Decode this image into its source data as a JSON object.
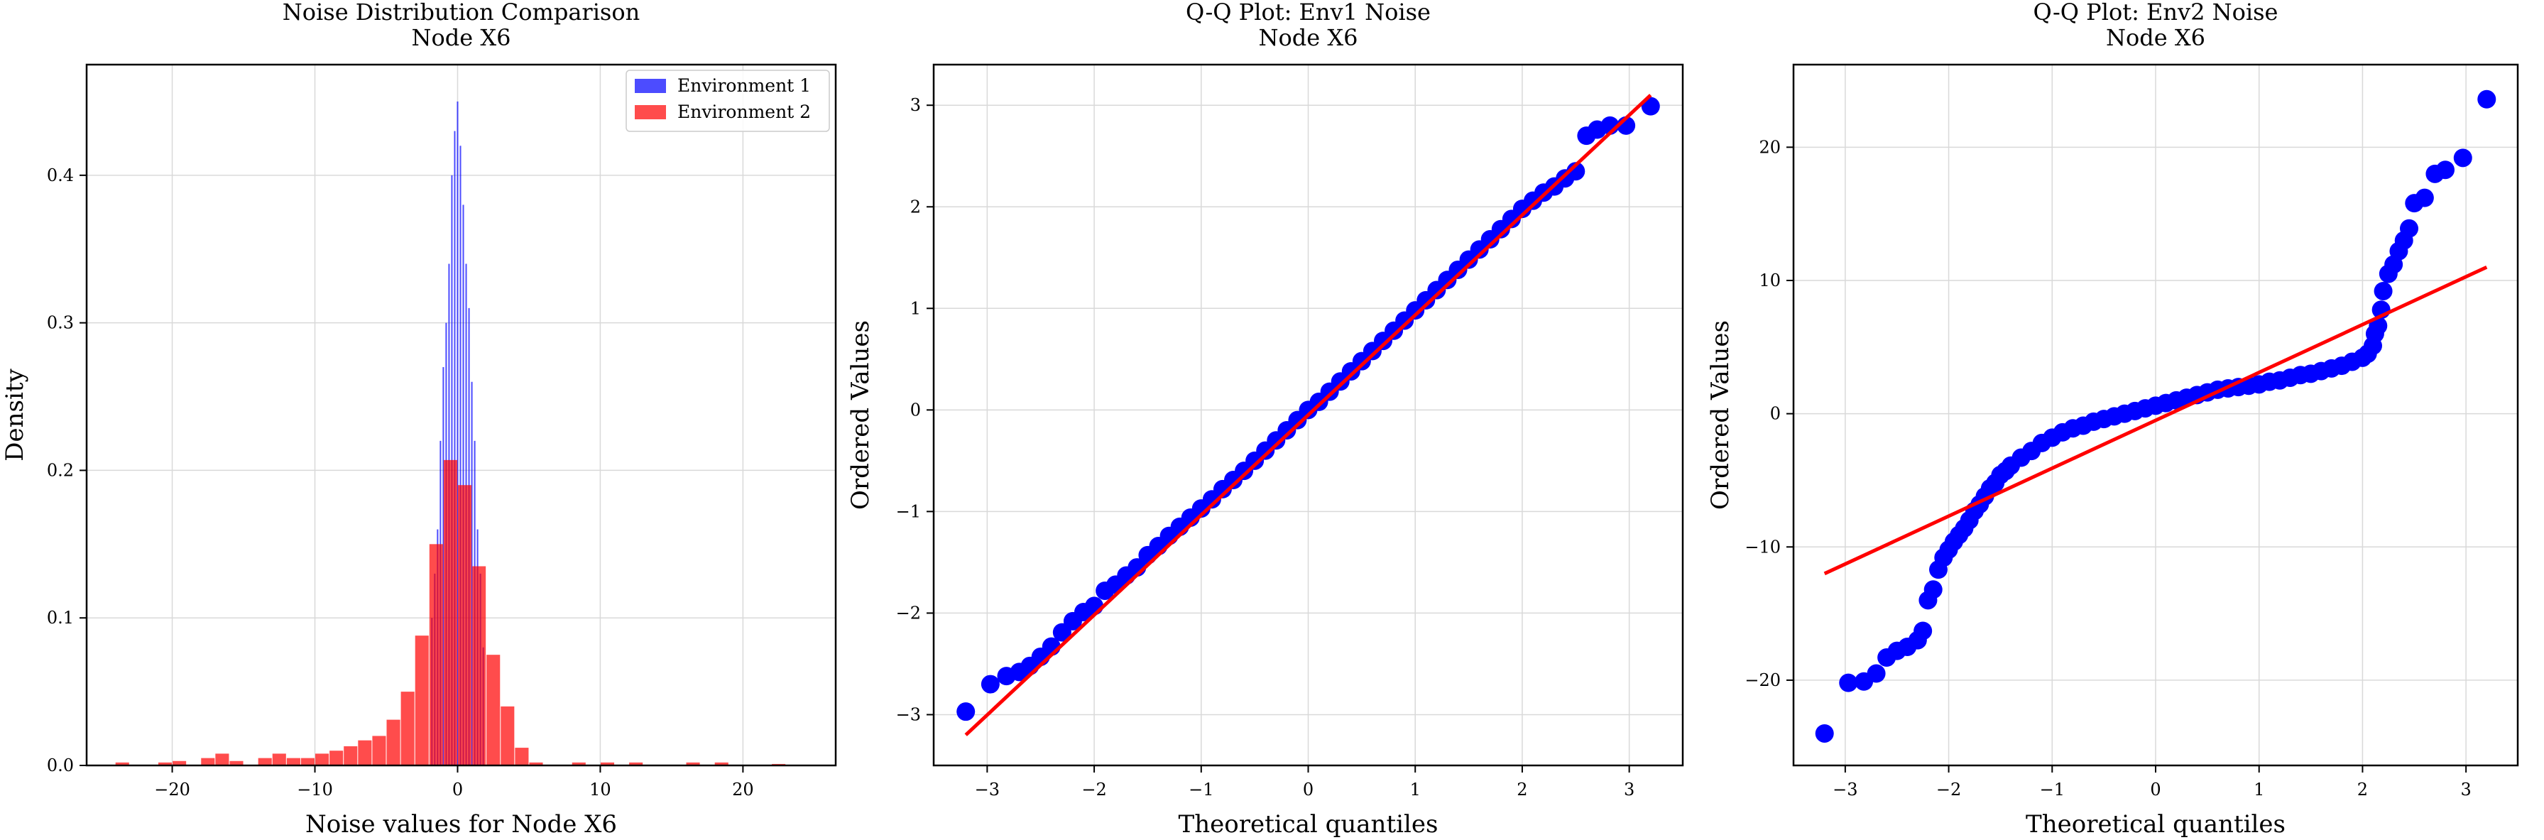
{
  "colors": {
    "env1": "#0000ff",
    "env2": "#ff0000",
    "scatter": "#0000ff",
    "fit_line": "#ff0000",
    "grid": "#d9d9d9"
  },
  "chart_data": [
    {
      "type": "bar",
      "title": "Noise Distribution Comparison\nNode X6",
      "xlabel": "Noise values for Node X6",
      "ylabel": "Density",
      "xlim": [
        -26,
        26.5
      ],
      "ylim": [
        0,
        0.475
      ],
      "xticks": [
        -20,
        -10,
        0,
        10,
        20
      ],
      "yticks": [
        0.0,
        0.1,
        0.2,
        0.3,
        0.4
      ],
      "grid": true,
      "legend_position": "top-right",
      "series": [
        {
          "name": "Environment 1",
          "color": "#0000ff",
          "alpha": 0.7,
          "bin_width": 0.1,
          "centers": [
            -1.8,
            -1.6,
            -1.4,
            -1.2,
            -1.0,
            -0.8,
            -0.6,
            -0.4,
            -0.2,
            0.0,
            0.2,
            0.4,
            0.6,
            0.8,
            1.0,
            1.2,
            1.4,
            1.6,
            1.8
          ],
          "values": [
            0.1,
            0.13,
            0.16,
            0.22,
            0.27,
            0.3,
            0.34,
            0.4,
            0.43,
            0.45,
            0.42,
            0.38,
            0.34,
            0.31,
            0.26,
            0.22,
            0.16,
            0.13,
            0.08
          ]
        },
        {
          "name": "Environment 2",
          "color": "#ff0000",
          "alpha": 0.7,
          "bin_width": 0.95,
          "centers": [
            -23.5,
            -20.5,
            -19.5,
            -17.5,
            -16.5,
            -15.5,
            -13.5,
            -12.5,
            -11.5,
            -10.5,
            -9.5,
            -8.5,
            -7.5,
            -6.5,
            -5.5,
            -4.5,
            -3.5,
            -2.5,
            -1.5,
            -0.5,
            0.5,
            1.5,
            2.5,
            3.5,
            4.5,
            5.5,
            8.5,
            10.5,
            12.5,
            16.5,
            18.5,
            22.5
          ],
          "values": [
            0.002,
            0.002,
            0.003,
            0.005,
            0.008,
            0.003,
            0.005,
            0.008,
            0.005,
            0.005,
            0.008,
            0.01,
            0.013,
            0.017,
            0.02,
            0.031,
            0.05,
            0.088,
            0.15,
            0.207,
            0.19,
            0.135,
            0.075,
            0.04,
            0.012,
            0.002,
            0.002,
            0.002,
            0.002,
            0.002,
            0.002,
            0.001
          ]
        }
      ]
    },
    {
      "type": "scatter",
      "title": "Q-Q Plot: Env1 Noise\nNode X6",
      "xlabel": "Theoretical quantiles",
      "ylabel": "Ordered Values",
      "xlim": [
        -3.5,
        3.5
      ],
      "ylim": [
        -3.5,
        3.4
      ],
      "xticks": [
        -3,
        -2,
        -1,
        0,
        1,
        2,
        3
      ],
      "yticks": [
        -3,
        -2,
        -1,
        0,
        1,
        2,
        3
      ],
      "grid": true,
      "fit_line": {
        "x": [
          -3.2,
          3.2
        ],
        "y": [
          -3.2,
          3.1
        ]
      },
      "points": {
        "x": [
          -3.2,
          -2.97,
          -2.82,
          -2.7,
          -2.6,
          -2.5,
          -2.4,
          -2.3,
          -2.2,
          -2.1,
          -2.0,
          -1.9,
          -1.8,
          -1.7,
          -1.6,
          -1.5,
          -1.4,
          -1.3,
          -1.2,
          -1.1,
          -1.0,
          -0.9,
          -0.8,
          -0.7,
          -0.6,
          -0.5,
          -0.4,
          -0.3,
          -0.2,
          -0.1,
          0.0,
          0.1,
          0.2,
          0.3,
          0.4,
          0.5,
          0.6,
          0.7,
          0.8,
          0.9,
          1.0,
          1.1,
          1.2,
          1.3,
          1.4,
          1.5,
          1.6,
          1.7,
          1.8,
          1.9,
          2.0,
          2.1,
          2.2,
          2.3,
          2.4,
          2.5,
          2.6,
          2.7,
          2.82,
          2.97,
          3.2
        ],
        "y": [
          -2.97,
          -2.7,
          -2.62,
          -2.58,
          -2.52,
          -2.43,
          -2.33,
          -2.19,
          -2.08,
          -1.99,
          -1.93,
          -1.78,
          -1.72,
          -1.63,
          -1.55,
          -1.43,
          -1.34,
          -1.24,
          -1.15,
          -1.06,
          -0.97,
          -0.88,
          -0.78,
          -0.69,
          -0.6,
          -0.5,
          -0.4,
          -0.3,
          -0.2,
          -0.1,
          0.0,
          0.08,
          0.18,
          0.28,
          0.38,
          0.48,
          0.58,
          0.68,
          0.78,
          0.88,
          0.98,
          1.08,
          1.18,
          1.28,
          1.38,
          1.48,
          1.58,
          1.68,
          1.78,
          1.88,
          1.98,
          2.06,
          2.14,
          2.2,
          2.28,
          2.35,
          2.7,
          2.76,
          2.8,
          2.8,
          2.99
        ]
      }
    },
    {
      "type": "scatter",
      "title": "Q-Q Plot: Env2 Noise\nNode X6",
      "xlabel": "Theoretical quantiles",
      "ylabel": "Ordered Values",
      "xlim": [
        -3.5,
        3.5
      ],
      "ylim": [
        -26.4,
        26.2
      ],
      "xticks": [
        -3,
        -2,
        -1,
        0,
        1,
        2,
        3
      ],
      "yticks": [
        -20,
        -10,
        0,
        10,
        20
      ],
      "grid": true,
      "fit_line": {
        "x": [
          -3.2,
          3.2
        ],
        "y": [
          -12.0,
          11.0
        ]
      },
      "points": {
        "x": [
          -3.2,
          -2.97,
          -2.82,
          -2.7,
          -2.6,
          -2.5,
          -2.4,
          -2.3,
          -2.25,
          -2.2,
          -2.15,
          -2.1,
          -2.05,
          -2.0,
          -1.95,
          -1.9,
          -1.85,
          -1.8,
          -1.75,
          -1.7,
          -1.65,
          -1.6,
          -1.55,
          -1.5,
          -1.45,
          -1.4,
          -1.3,
          -1.2,
          -1.1,
          -1.0,
          -0.9,
          -0.8,
          -0.7,
          -0.6,
          -0.5,
          -0.4,
          -0.3,
          -0.2,
          -0.1,
          0.0,
          0.1,
          0.2,
          0.3,
          0.4,
          0.5,
          0.6,
          0.7,
          0.8,
          0.9,
          1.0,
          1.1,
          1.2,
          1.3,
          1.4,
          1.5,
          1.6,
          1.7,
          1.8,
          1.9,
          2.0,
          2.05,
          2.1,
          2.12,
          2.15,
          2.18,
          2.2,
          2.25,
          2.3,
          2.35,
          2.4,
          2.45,
          2.5,
          2.6,
          2.7,
          2.8,
          2.97,
          3.2
        ],
        "y": [
          -24.0,
          -20.2,
          -20.1,
          -19.5,
          -18.3,
          -17.8,
          -17.5,
          -17.0,
          -16.3,
          -14.0,
          -13.2,
          -11.7,
          -10.8,
          -10.2,
          -9.6,
          -9.1,
          -8.6,
          -8.0,
          -7.3,
          -6.8,
          -6.2,
          -5.6,
          -5.2,
          -4.6,
          -4.3,
          -3.9,
          -3.3,
          -2.8,
          -2.2,
          -1.8,
          -1.4,
          -1.1,
          -0.9,
          -0.6,
          -0.4,
          -0.2,
          0.0,
          0.2,
          0.4,
          0.6,
          0.8,
          1.0,
          1.2,
          1.4,
          1.6,
          1.8,
          1.9,
          2.0,
          2.1,
          2.2,
          2.4,
          2.5,
          2.7,
          2.9,
          3.0,
          3.2,
          3.4,
          3.6,
          3.9,
          4.2,
          4.5,
          5.1,
          6.0,
          6.6,
          7.8,
          9.2,
          10.5,
          11.2,
          12.2,
          13.0,
          13.9,
          15.8,
          16.2,
          18.0,
          18.3,
          19.2,
          23.6
        ]
      }
    }
  ]
}
